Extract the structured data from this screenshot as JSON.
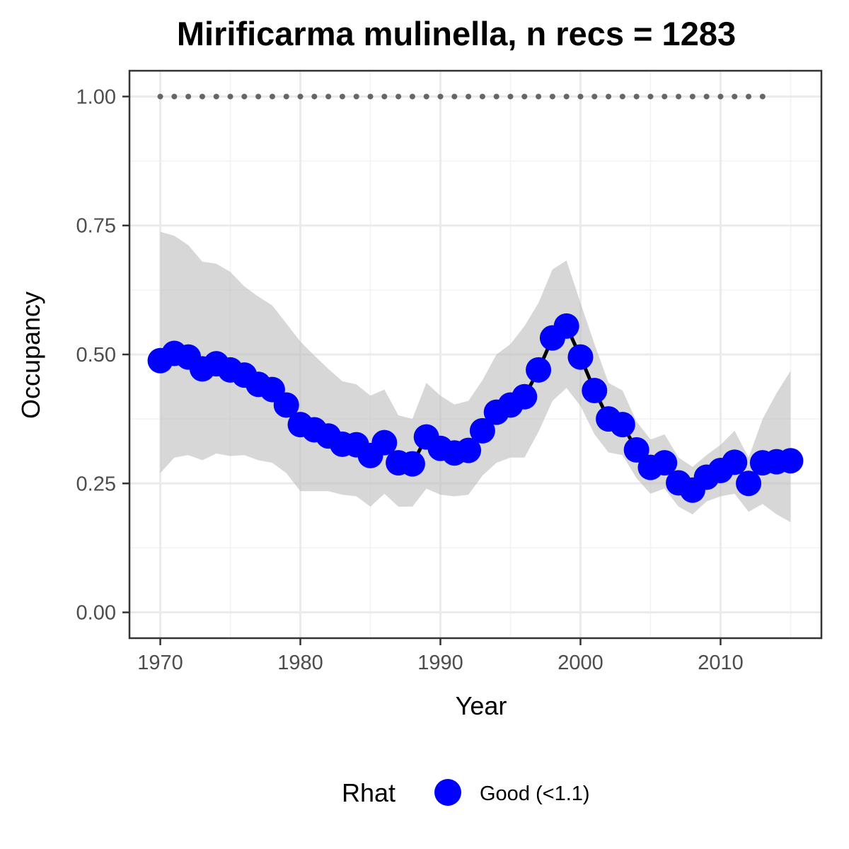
{
  "chart_data": {
    "type": "line",
    "title": "Mirificarma mulinella, n recs = 1283",
    "xlabel": "Year",
    "ylabel": "Occupancy",
    "xlim": [
      1967.8,
      2017.2
    ],
    "ylim": [
      -0.05,
      1.05
    ],
    "x_ticks": [
      1970,
      1980,
      1990,
      2000,
      2010
    ],
    "x_tick_labels": [
      "1970",
      "1980",
      "1990",
      "2000",
      "2010"
    ],
    "y_ticks": [
      0,
      0.25,
      0.5,
      0.75,
      1.0
    ],
    "y_tick_labels": [
      "0.00",
      "0.25",
      "0.50",
      "0.75",
      "1.00"
    ],
    "grid": true,
    "legend_position": "bottom",
    "legend": {
      "title": "Rhat",
      "entries": [
        {
          "label": "Good (<1.1)",
          "color": "#0000ff"
        }
      ]
    },
    "colors": {
      "points": "#0000ff",
      "line": "#000000",
      "ribbon": "#bebebe",
      "reference_line": "#666666"
    },
    "reference_line": {
      "y": 1.0,
      "x_start": 1970,
      "x_end": 2013,
      "style": "dotted"
    },
    "series": [
      {
        "name": "Good (<1.1)",
        "x": [
          1970,
          1971,
          1972,
          1973,
          1974,
          1975,
          1976,
          1977,
          1978,
          1979,
          1980,
          1981,
          1982,
          1983,
          1984,
          1985,
          1986,
          1987,
          1988,
          1989,
          1990,
          1991,
          1992,
          1993,
          1994,
          1995,
          1996,
          1997,
          1998,
          1999,
          2000,
          2001,
          2002,
          2003,
          2004,
          2005,
          2006,
          2007,
          2008,
          2009,
          2010,
          2011,
          2012,
          2013,
          2014,
          2015
        ],
        "y": [
          0.488,
          0.502,
          0.495,
          0.472,
          0.482,
          0.47,
          0.46,
          0.442,
          0.432,
          0.402,
          0.364,
          0.354,
          0.342,
          0.326,
          0.325,
          0.304,
          0.329,
          0.29,
          0.288,
          0.34,
          0.318,
          0.309,
          0.314,
          0.352,
          0.388,
          0.402,
          0.418,
          0.47,
          0.532,
          0.555,
          0.495,
          0.43,
          0.375,
          0.364,
          0.315,
          0.281,
          0.29,
          0.251,
          0.237,
          0.262,
          0.275,
          0.291,
          0.25,
          0.29,
          0.292,
          0.294
        ],
        "lower": [
          0.27,
          0.3,
          0.305,
          0.295,
          0.308,
          0.303,
          0.305,
          0.295,
          0.29,
          0.27,
          0.235,
          0.235,
          0.235,
          0.228,
          0.225,
          0.205,
          0.23,
          0.205,
          0.205,
          0.24,
          0.228,
          0.225,
          0.228,
          0.265,
          0.29,
          0.3,
          0.3,
          0.35,
          0.41,
          0.435,
          0.4,
          0.345,
          0.31,
          0.305,
          0.26,
          0.23,
          0.24,
          0.205,
          0.19,
          0.215,
          0.225,
          0.23,
          0.195,
          0.21,
          0.19,
          0.175
        ],
        "upper": [
          0.738,
          0.73,
          0.712,
          0.68,
          0.676,
          0.66,
          0.632,
          0.612,
          0.595,
          0.56,
          0.525,
          0.498,
          0.472,
          0.448,
          0.442,
          0.42,
          0.432,
          0.382,
          0.375,
          0.445,
          0.42,
          0.403,
          0.41,
          0.45,
          0.5,
          0.52,
          0.555,
          0.6,
          0.665,
          0.682,
          0.6,
          0.52,
          0.445,
          0.43,
          0.37,
          0.335,
          0.345,
          0.3,
          0.282,
          0.305,
          0.325,
          0.352,
          0.3,
          0.375,
          0.425,
          0.468
        ]
      }
    ]
  }
}
